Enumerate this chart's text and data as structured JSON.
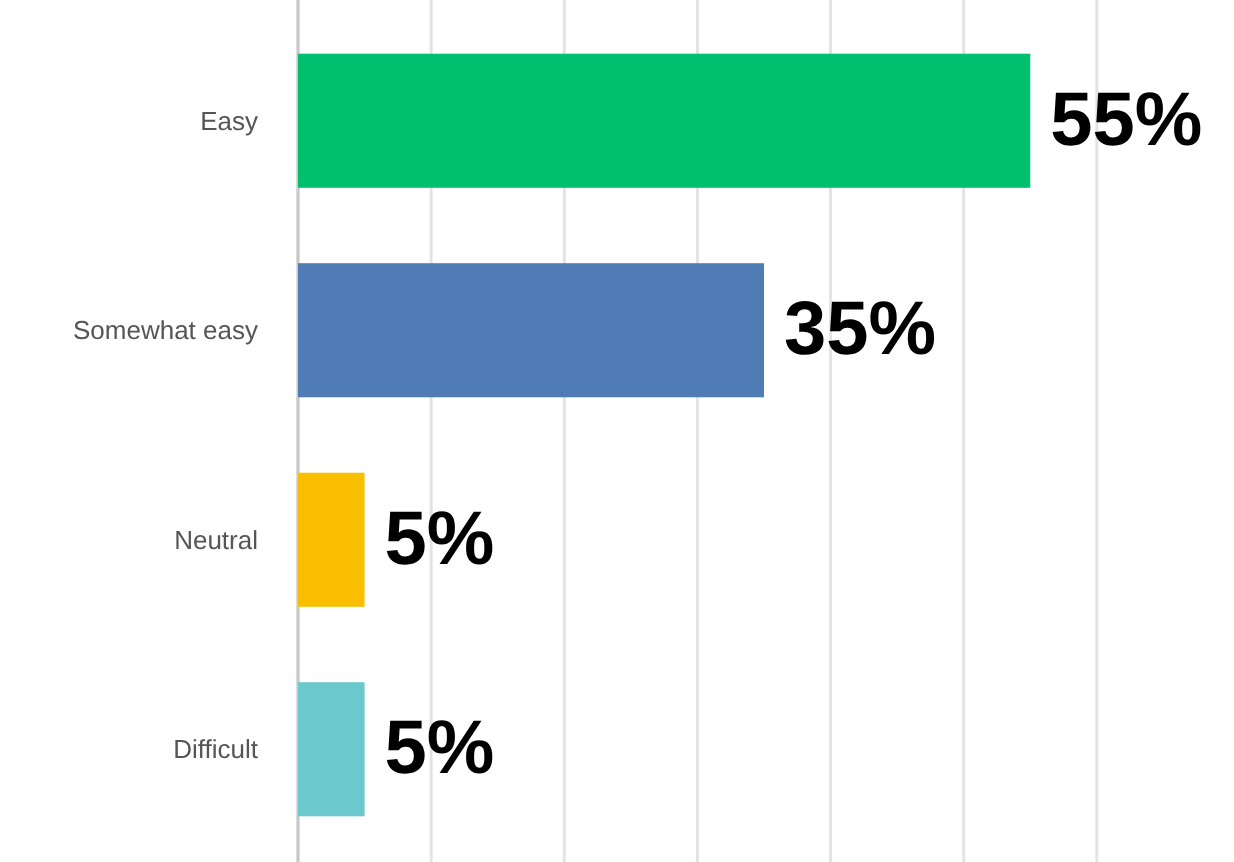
{
  "chart_data": {
    "type": "bar",
    "orientation": "horizontal",
    "categories": [
      "Easy",
      "Somewhat easy",
      "Neutral",
      "Difficult"
    ],
    "values": [
      55,
      35,
      5,
      5
    ],
    "colors": [
      "#00bf6f",
      "#507cb6",
      "#f9be00",
      "#6bc8cd"
    ],
    "value_labels": [
      "55%",
      "35%",
      "5%",
      "5%"
    ],
    "grid": "x"
  }
}
